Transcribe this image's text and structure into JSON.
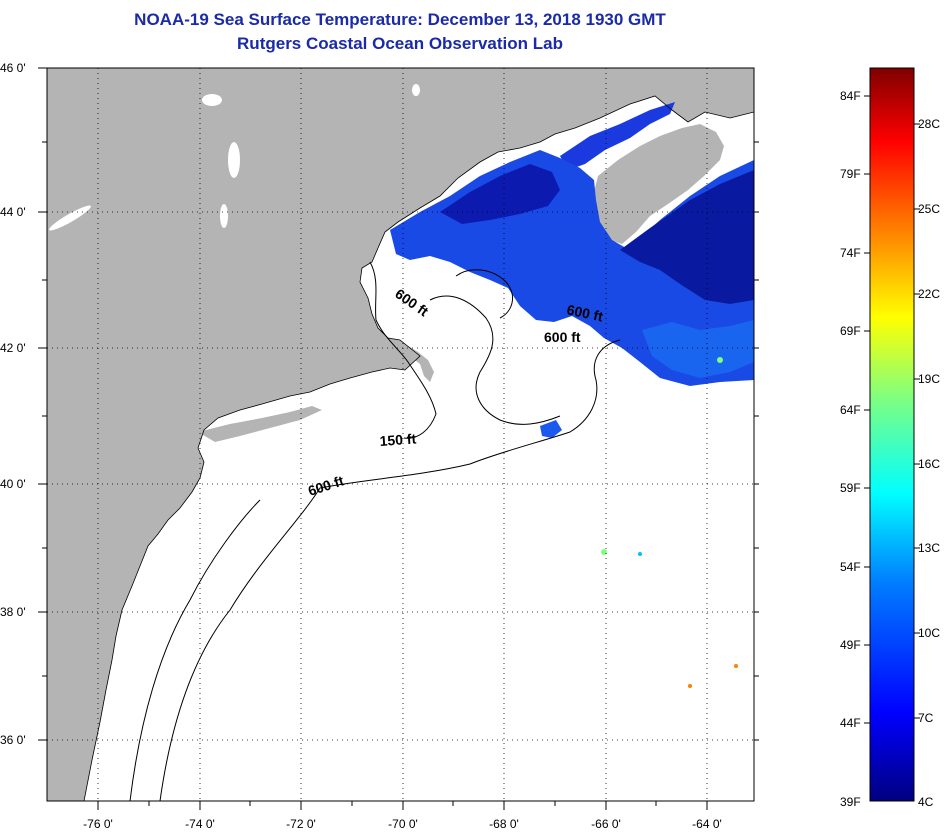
{
  "title": "NOAA-19 Sea Surface Temperature:  December 13, 2018 1930 GMT",
  "subtitle": "Rutgers Coastal Ocean Observation Lab",
  "lat_labels": [
    "46 0'",
    "44 0'",
    "42 0'",
    "40 0'",
    "38 0'",
    "36 0'"
  ],
  "lon_labels": [
    "-76 0'",
    "-74 0'",
    "-72 0'",
    "-70 0'",
    "-68 0'",
    "-66 0'",
    "-64 0'"
  ],
  "contour_labels": [
    "600 ft",
    "600 ft",
    "600 ft",
    "150 ft",
    "600 ft"
  ],
  "colorbar": {
    "f_labels": [
      "84F",
      "79F",
      "74F",
      "69F",
      "64F",
      "59F",
      "54F",
      "49F",
      "44F",
      "39F"
    ],
    "c_labels": [
      "28C",
      "25C",
      "22C",
      "19C",
      "16C",
      "13C",
      "10C",
      "7C",
      "4C"
    ],
    "colors": [
      "#00007f",
      "#0000ff",
      "#007fff",
      "#00ffff",
      "#7fff7f",
      "#ffff00",
      "#ff7f00",
      "#ff0000",
      "#7f0000"
    ]
  },
  "colors": {
    "land": "#b4b4b4",
    "ocean": "#ffffff",
    "sst_cold": "#0a1aa0",
    "sst_mid": "#1a5aee",
    "title": "#1a2aa8"
  }
}
